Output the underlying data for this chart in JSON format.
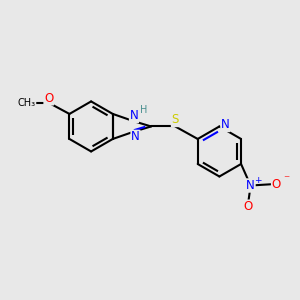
{
  "bg_color": "#e8e8e8",
  "bond_color": "#000000",
  "bond_width": 1.5,
  "atom_colors": {
    "N": "#0000ff",
    "O": "#ff0000",
    "S": "#cccc00",
    "H": "#4a9090",
    "C": "#000000"
  },
  "font_size": 8.5,
  "xlim": [
    0,
    10
  ],
  "ylim": [
    0,
    10
  ]
}
